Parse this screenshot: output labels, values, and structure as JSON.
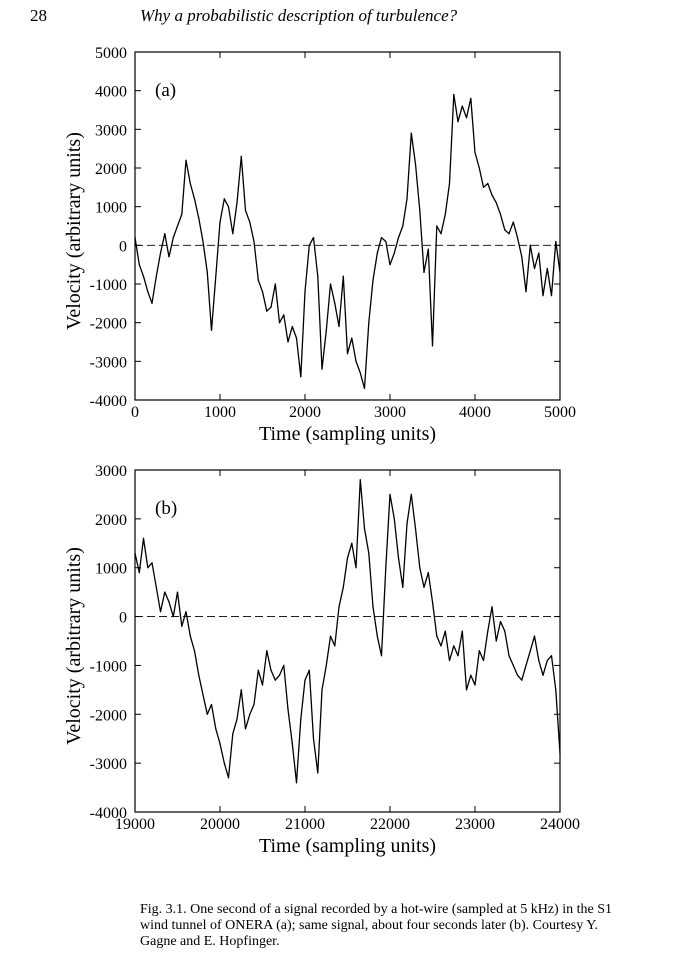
{
  "header": {
    "page_number": "28",
    "running_title": "Why a probabilistic description of turbulence?"
  },
  "chart_data": [
    {
      "type": "line",
      "panel_label": "(a)",
      "xlabel": "Time (sampling units)",
      "ylabel": "Velocity (arbitrary units)",
      "xlim": [
        0,
        5000
      ],
      "ylim": [
        -4000,
        5000
      ],
      "xticks": [
        0,
        1000,
        2000,
        3000,
        4000,
        5000
      ],
      "yticks": [
        5000,
        4000,
        3000,
        2000,
        1000,
        0,
        -1000,
        -2000,
        -3000,
        -4000
      ],
      "xtick_labels": [
        "0",
        "1000",
        "2000",
        "3000",
        "4000",
        "5000"
      ],
      "ytick_labels": [
        "5000",
        "4000",
        "3000",
        "2000",
        "1000",
        "0",
        "-1000",
        "-2000",
        "-3000",
        "-4000"
      ],
      "reference_line": 0,
      "series": [
        {
          "x": [
            0,
            50,
            100,
            150,
            200,
            250,
            300,
            350,
            400,
            450,
            500,
            550,
            600,
            650,
            700,
            750,
            800,
            850,
            900,
            950,
            1000,
            1050,
            1100,
            1150,
            1200,
            1250,
            1300,
            1350,
            1400,
            1450,
            1500,
            1550,
            1600,
            1650,
            1700,
            1750,
            1800,
            1850,
            1900,
            1950,
            2000,
            2050,
            2100,
            2150,
            2200,
            2250,
            2300,
            2350,
            2400,
            2450,
            2500,
            2550,
            2600,
            2650,
            2700,
            2750,
            2800,
            2850,
            2900,
            2950,
            3000,
            3050,
            3100,
            3150,
            3200,
            3250,
            3300,
            3350,
            3400,
            3450,
            3500,
            3550,
            3600,
            3650,
            3700,
            3750,
            3800,
            3850,
            3900,
            3950,
            4000,
            4050,
            4100,
            4150,
            4200,
            4250,
            4300,
            4350,
            4400,
            4450,
            4500,
            4550,
            4600,
            4650,
            4700,
            4750,
            4800,
            4850,
            4900,
            4950,
            5000
          ],
          "values": [
            200,
            -500,
            -800,
            -1200,
            -1500,
            -800,
            -200,
            300,
            -300,
            200,
            500,
            800,
            2200,
            1600,
            1200,
            700,
            100,
            -700,
            -2200,
            -800,
            600,
            1200,
            1000,
            300,
            1100,
            2300,
            900,
            600,
            100,
            -900,
            -1200,
            -1700,
            -1600,
            -1000,
            -2000,
            -1800,
            -2500,
            -2100,
            -2400,
            -3400,
            -1200,
            0,
            200,
            -800,
            -3200,
            -2200,
            -1000,
            -1500,
            -2100,
            -800,
            -2800,
            -2400,
            -3000,
            -3300,
            -3700,
            -2000,
            -900,
            -200,
            200,
            100,
            -500,
            -200,
            200,
            500,
            1200,
            2900,
            2100,
            900,
            -700,
            -100,
            -2600,
            500,
            300,
            800,
            1600,
            3900,
            3200,
            3600,
            3300,
            3800,
            2400,
            2000,
            1500,
            1600,
            1300,
            1100,
            800,
            400,
            300,
            600,
            200,
            -300,
            -1200,
            0,
            -600,
            -200,
            -1300,
            -600,
            -1300,
            100,
            -700
          ]
        }
      ]
    },
    {
      "type": "line",
      "panel_label": "(b)",
      "xlabel": "Time (sampling units)",
      "ylabel": "Velocity (arbitrary units)",
      "xlim": [
        19000,
        24000
      ],
      "ylim": [
        -4000,
        3000
      ],
      "xticks": [
        19000,
        20000,
        21000,
        22000,
        23000,
        24000
      ],
      "yticks": [
        3000,
        2000,
        1000,
        0,
        -1000,
        -2000,
        -3000,
        -4000
      ],
      "xtick_labels": [
        "19000",
        "20000",
        "21000",
        "22000",
        "23000",
        "24000"
      ],
      "ytick_labels": [
        "3000",
        "2000",
        "1000",
        "0",
        "-1000",
        "-2000",
        "-3000",
        "-4000"
      ],
      "reference_line": 0,
      "series": [
        {
          "x": [
            19000,
            19050,
            19100,
            19150,
            19200,
            19250,
            19300,
            19350,
            19400,
            19450,
            19500,
            19550,
            19600,
            19650,
            19700,
            19750,
            19800,
            19850,
            19900,
            19950,
            20000,
            20050,
            20100,
            20150,
            20200,
            20250,
            20300,
            20350,
            20400,
            20450,
            20500,
            20550,
            20600,
            20650,
            20700,
            20750,
            20800,
            20850,
            20900,
            20950,
            21000,
            21050,
            21100,
            21150,
            21200,
            21250,
            21300,
            21350,
            21400,
            21450,
            21500,
            21550,
            21600,
            21650,
            21700,
            21750,
            21800,
            21850,
            21900,
            21950,
            22000,
            22050,
            22100,
            22150,
            22200,
            22250,
            22300,
            22350,
            22400,
            22450,
            22500,
            22550,
            22600,
            22650,
            22700,
            22750,
            22800,
            22850,
            22900,
            22950,
            23000,
            23050,
            23100,
            23150,
            23200,
            23250,
            23300,
            23350,
            23400,
            23450,
            23500,
            23550,
            23600,
            23650,
            23700,
            23750,
            23800,
            23850,
            23900,
            23950,
            24000
          ],
          "values": [
            1300,
            900,
            1600,
            1000,
            1100,
            600,
            100,
            500,
            300,
            0,
            500,
            -200,
            100,
            -400,
            -700,
            -1200,
            -1600,
            -2000,
            -1800,
            -2300,
            -2600,
            -3000,
            -3300,
            -2400,
            -2100,
            -1500,
            -2300,
            -2000,
            -1800,
            -1100,
            -1400,
            -700,
            -1100,
            -1300,
            -1200,
            -1000,
            -1900,
            -2600,
            -3400,
            -2100,
            -1300,
            -1100,
            -2500,
            -3200,
            -1500,
            -1000,
            -400,
            -600,
            200,
            600,
            1200,
            1500,
            1000,
            2800,
            1800,
            1300,
            200,
            -400,
            -800,
            1000,
            2500,
            2000,
            1200,
            600,
            1900,
            2500,
            1800,
            1000,
            600,
            900,
            300,
            -400,
            -600,
            -300,
            -900,
            -600,
            -800,
            -300,
            -1500,
            -1200,
            -1400,
            -700,
            -900,
            -300,
            200,
            -500,
            -100,
            -300,
            -800,
            -1000,
            -1200,
            -1300,
            -1000,
            -700,
            -400,
            -900,
            -1200,
            -900,
            -800,
            -1500,
            -2800
          ]
        }
      ]
    }
  ],
  "caption": {
    "text": "Fig. 3.1. One second of a signal recorded by a hot-wire (sampled at 5 kHz) in the S1 wind tunnel of ONERA (a); same signal, about four seconds later (b). Courtesy Y. Gagne and E. Hopfinger."
  }
}
